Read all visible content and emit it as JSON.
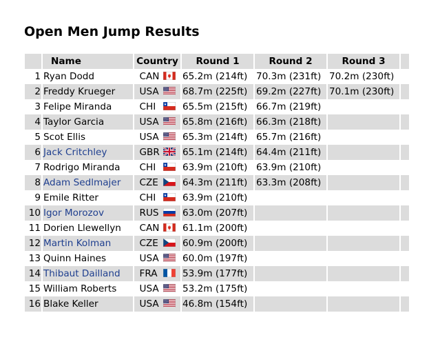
{
  "page": {
    "title": "Open Men Jump Results"
  },
  "table": {
    "headers": {
      "name": "Name",
      "country": "Country",
      "round1": "Round 1",
      "round2": "Round 2",
      "round3": "Round 3"
    },
    "rows": [
      {
        "rank": "1",
        "name": "Ryan Dodd",
        "link": false,
        "country": "CAN",
        "flag": "flag-canada-icon",
        "r1": "65.2m (214ft)",
        "r2": "70.3m (231ft)",
        "r3": "70.2m (230ft)"
      },
      {
        "rank": "2",
        "name": "Freddy Krueger",
        "link": false,
        "country": "USA",
        "flag": "flag-usa-icon",
        "r1": "68.7m (225ft)",
        "r2": "69.2m (227ft)",
        "r3": "70.1m (230ft)"
      },
      {
        "rank": "3",
        "name": "Felipe Miranda",
        "link": false,
        "country": "CHI",
        "flag": "flag-chile-icon",
        "r1": "65.5m (215ft)",
        "r2": "66.7m (219ft)",
        "r3": ""
      },
      {
        "rank": "4",
        "name": "Taylor Garcia",
        "link": false,
        "country": "USA",
        "flag": "flag-usa-icon",
        "r1": "65.8m (216ft)",
        "r2": "66.3m (218ft)",
        "r3": ""
      },
      {
        "rank": "5",
        "name": "Scot Ellis",
        "link": false,
        "country": "USA",
        "flag": "flag-usa-icon",
        "r1": "65.3m (214ft)",
        "r2": "65.7m (216ft)",
        "r3": ""
      },
      {
        "rank": "6",
        "name": "Jack Critchley",
        "link": true,
        "country": "GBR",
        "flag": "flag-uk-icon",
        "r1": "65.1m (214ft)",
        "r2": "64.4m (211ft)",
        "r3": ""
      },
      {
        "rank": "7",
        "name": "Rodrigo Miranda",
        "link": false,
        "country": "CHI",
        "flag": "flag-chile-icon",
        "r1": "63.9m (210ft)",
        "r2": "63.9m (210ft)",
        "r3": ""
      },
      {
        "rank": "8",
        "name": "Adam Sedlmajer",
        "link": true,
        "country": "CZE",
        "flag": "flag-czech-icon",
        "r1": "64.3m (211ft)",
        "r2": "63.3m (208ft)",
        "r3": ""
      },
      {
        "rank": "9",
        "name": "Emile Ritter",
        "link": false,
        "country": "CHI",
        "flag": "flag-chile-icon",
        "r1": "63.9m (210ft)",
        "r2": "",
        "r3": ""
      },
      {
        "rank": "10",
        "name": "Igor Morozov",
        "link": true,
        "country": "RUS",
        "flag": "flag-russia-icon",
        "r1": "63.0m (207ft)",
        "r2": "",
        "r3": ""
      },
      {
        "rank": "11",
        "name": "Dorien Llewellyn",
        "link": false,
        "country": "CAN",
        "flag": "flag-canada-icon",
        "r1": "61.1m (200ft)",
        "r2": "",
        "r3": ""
      },
      {
        "rank": "12",
        "name": "Martin Kolman",
        "link": true,
        "country": "CZE",
        "flag": "flag-czech-icon",
        "r1": "60.9m (200ft)",
        "r2": "",
        "r3": ""
      },
      {
        "rank": "13",
        "name": "Quinn Haines",
        "link": false,
        "country": "USA",
        "flag": "flag-usa-icon",
        "r1": "60.0m (197ft)",
        "r2": "",
        "r3": ""
      },
      {
        "rank": "14",
        "name": "Thibaut Dailland",
        "link": true,
        "country": "FRA",
        "flag": "flag-france-icon",
        "r1": "53.9m (177ft)",
        "r2": "",
        "r3": ""
      },
      {
        "rank": "15",
        "name": "William Roberts",
        "link": false,
        "country": "USA",
        "flag": "flag-usa-icon",
        "r1": "53.2m (175ft)",
        "r2": "",
        "r3": ""
      },
      {
        "rank": "16",
        "name": "Blake Keller",
        "link": false,
        "country": "USA",
        "flag": "flag-usa-icon",
        "r1": "46.8m (154ft)",
        "r2": "",
        "r3": ""
      }
    ]
  },
  "colors": {
    "shade": "#dcdcdc",
    "link": "#1f3f8f"
  }
}
